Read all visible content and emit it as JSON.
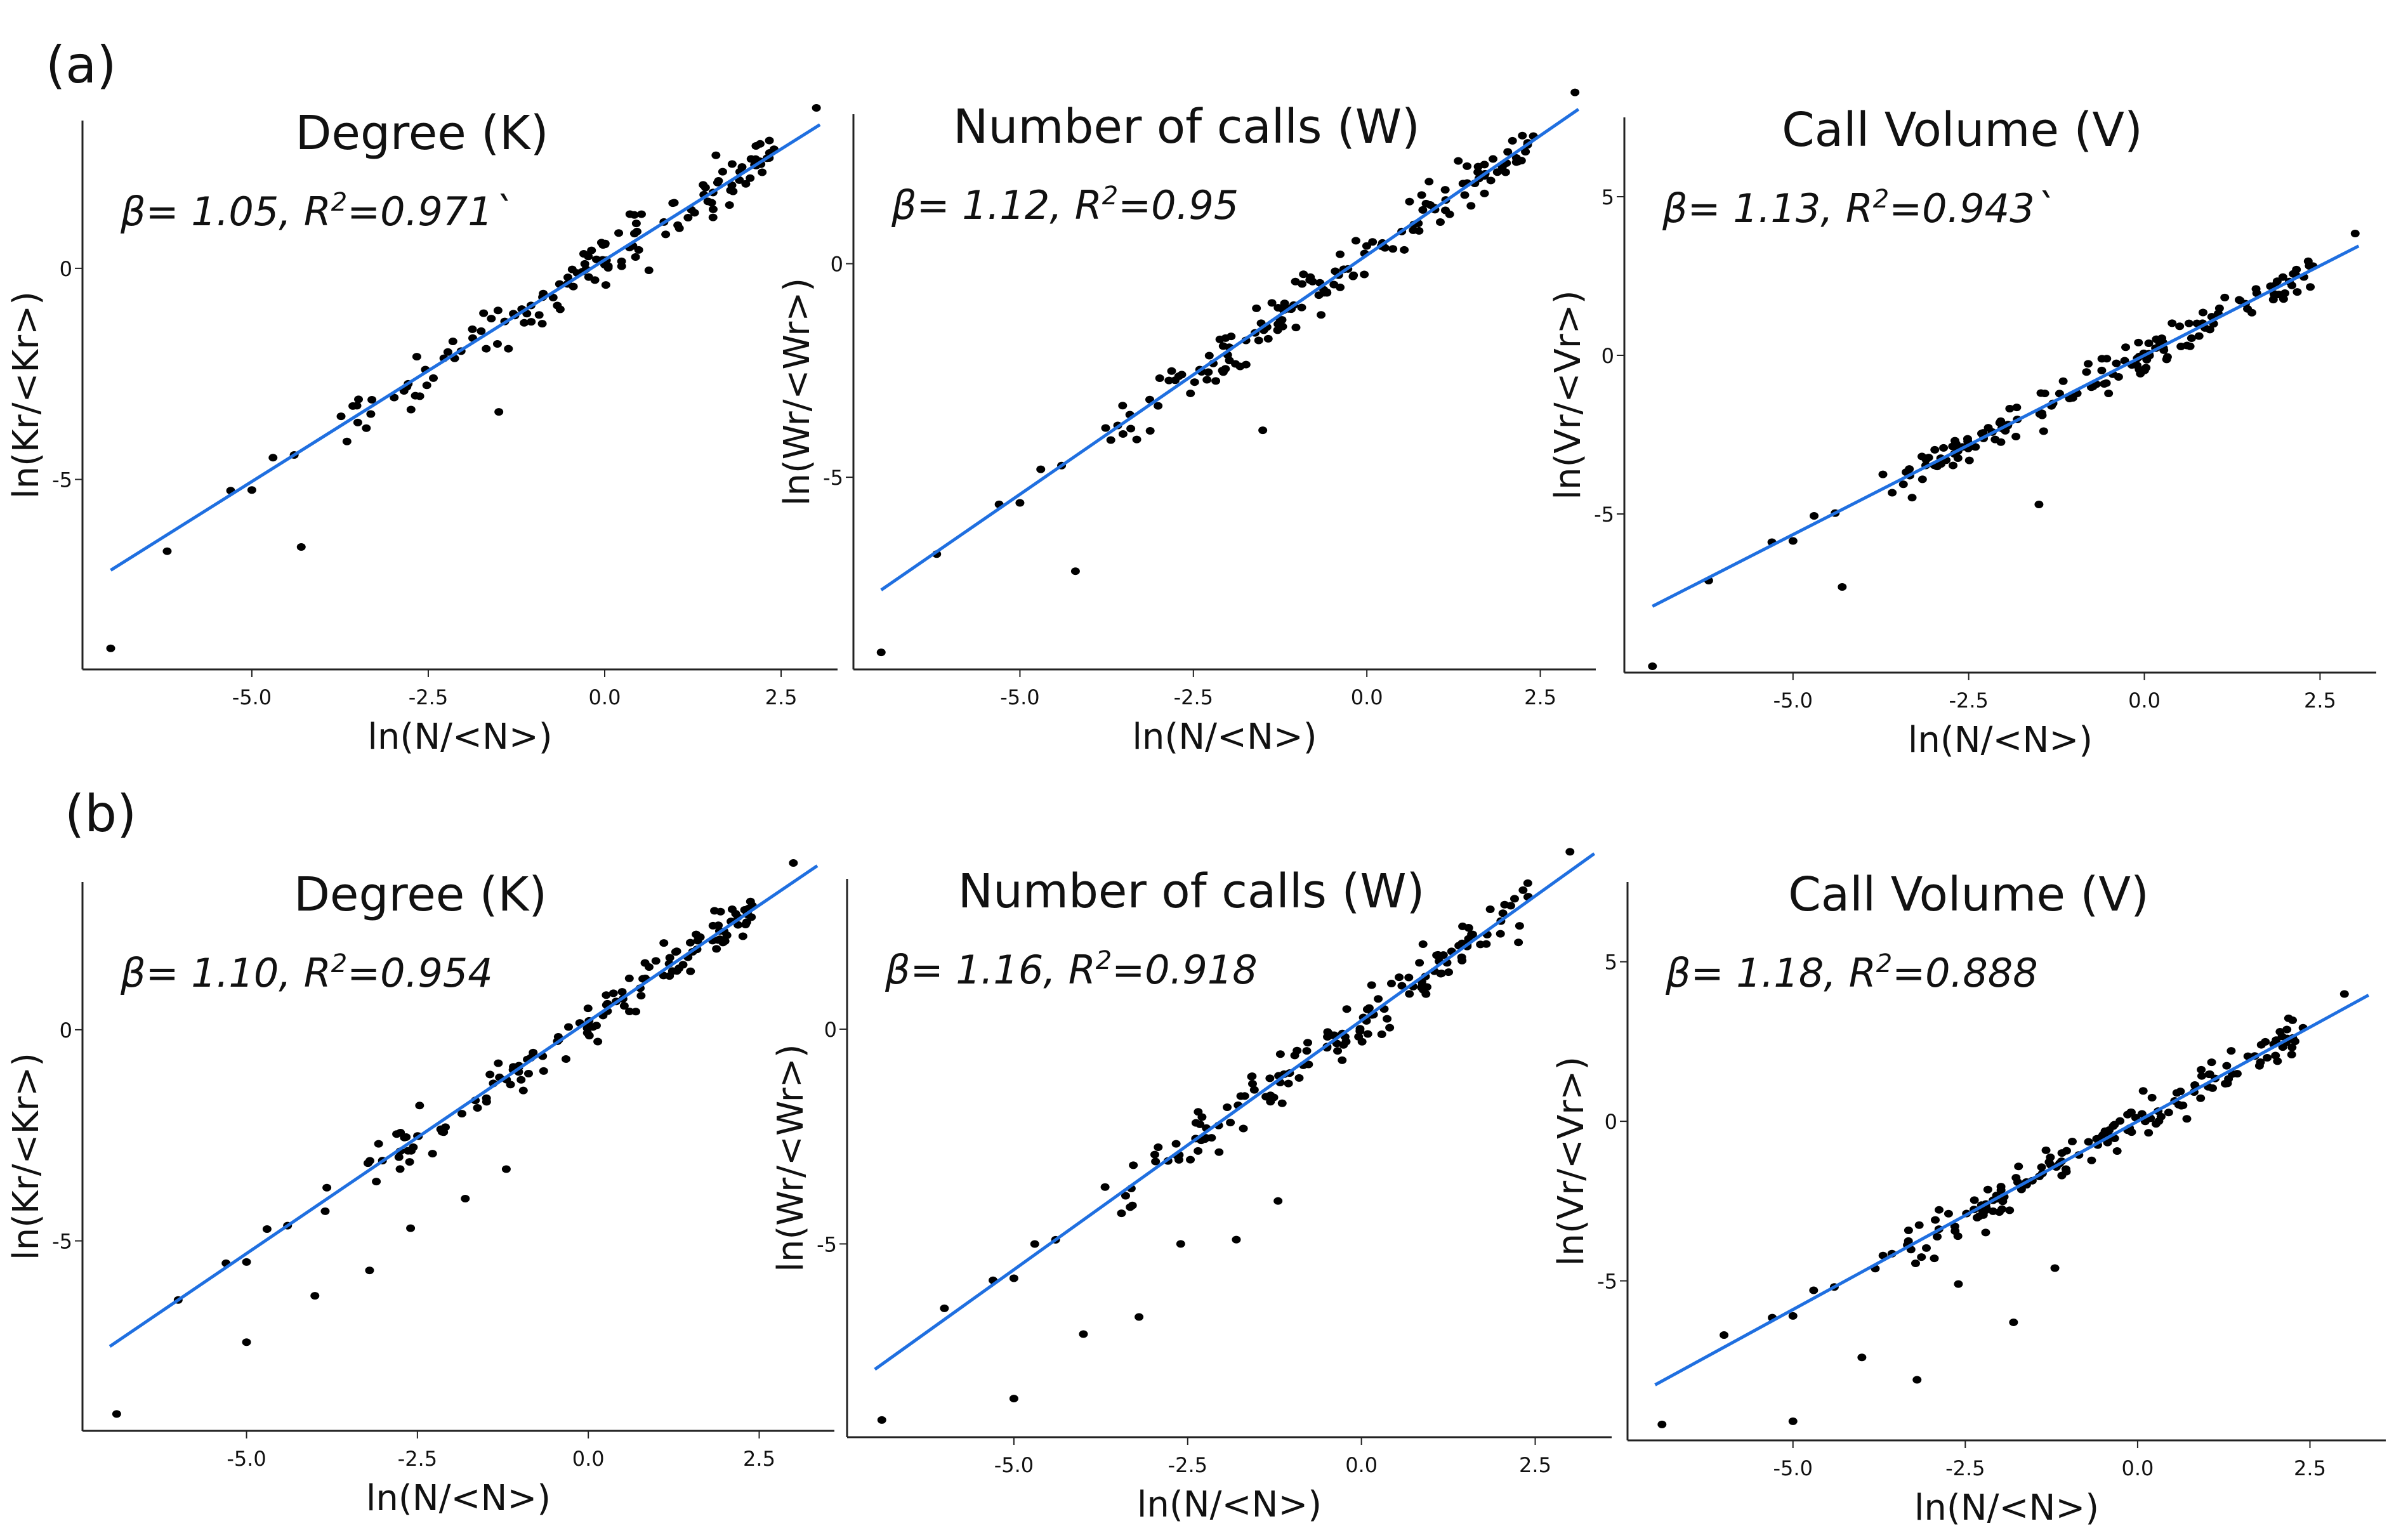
{
  "figure": {
    "row_labels": [
      "(a)",
      "(b)"
    ]
  },
  "colors": {
    "fit_line": "#1f6fe0",
    "points": "#000000",
    "axes": "#222222",
    "text": "#111111"
  },
  "chart_data": [
    {
      "type": "scatter",
      "panel": "a-1",
      "title": "Degree (K)",
      "beta": "1.05",
      "r2": "0.971`",
      "xlabel": "ln(N/<N>)",
      "ylabel": "ln(Kr/<Kr>)",
      "xlim": [
        -7.4,
        3.3
      ],
      "ylim": [
        -9.5,
        3.5
      ],
      "xticks": [
        "-5.0",
        "-2.5",
        "0.0",
        "2.5"
      ],
      "yticks": [
        "0",
        "-5"
      ],
      "fit": {
        "slope": 1.05,
        "intercept": 0.2
      },
      "outliers": [
        [
          -7.0,
          -9.0
        ],
        [
          -6.2,
          -6.7
        ],
        [
          -4.3,
          -6.6
        ],
        [
          -1.5,
          -3.4
        ]
      ]
    },
    {
      "type": "scatter",
      "panel": "a-2",
      "title": "Number of calls (W)",
      "beta": "1.12",
      "r2": "0.95",
      "xlabel": "ln(N/<N>)",
      "ylabel": "ln(Wr/<Wr>)",
      "xlim": [
        -7.4,
        3.3
      ],
      "ylim": [
        -9.5,
        3.5
      ],
      "xticks": [
        "-5.0",
        "-2.5",
        "0.0",
        "2.5"
      ],
      "yticks": [
        "0",
        "-5"
      ],
      "fit": {
        "slope": 1.12,
        "intercept": 0.2
      },
      "outliers": [
        [
          -7.0,
          -9.1
        ],
        [
          -6.2,
          -6.8
        ],
        [
          -4.2,
          -7.2
        ],
        [
          -1.5,
          -3.9
        ]
      ]
    },
    {
      "type": "scatter",
      "panel": "a-3",
      "title": "Call Volume (V)",
      "beta": "1.13",
      "r2": "0.943`",
      "xlabel": "ln(N/<N>)",
      "ylabel": "ln(Vr/<Vr>)",
      "xlim": [
        -7.4,
        3.3
      ],
      "ylim": [
        -10.0,
        7.5
      ],
      "xticks": [
        "-5.0",
        "-2.5",
        "0.0",
        "2.5"
      ],
      "yticks": [
        "5",
        "0",
        "-5"
      ],
      "fit": {
        "slope": 1.13,
        "intercept": 0.0
      },
      "outliers": [
        [
          -7.0,
          -9.8
        ],
        [
          -6.2,
          -7.1
        ],
        [
          -4.3,
          -7.3
        ],
        [
          -1.5,
          -4.7
        ]
      ]
    },
    {
      "type": "scatter",
      "panel": "b-1",
      "title": "Degree (K)",
      "beta": "1.10",
      "r2": "0.954",
      "xlabel": "ln(N/<N>)",
      "ylabel": "ln(Kr/<Kr>)",
      "xlim": [
        -7.4,
        3.6
      ],
      "ylim": [
        -9.5,
        3.5
      ],
      "xticks": [
        "-5.0",
        "-2.5",
        "0.0",
        "2.5"
      ],
      "yticks": [
        "0",
        "-5"
      ],
      "fit": {
        "slope": 1.1,
        "intercept": 0.2
      },
      "outliers": [
        [
          -6.9,
          -9.1
        ],
        [
          -6.0,
          -6.4
        ],
        [
          -5.0,
          -7.4
        ],
        [
          -4.0,
          -6.3
        ],
        [
          -3.2,
          -5.7
        ],
        [
          -2.6,
          -4.7
        ],
        [
          -1.8,
          -4.0
        ],
        [
          -1.2,
          -3.3
        ]
      ]
    },
    {
      "type": "scatter",
      "panel": "b-2",
      "title": "Number of calls (W)",
      "beta": "1.16",
      "r2": "0.918",
      "xlabel": "ln(N/<N>)",
      "ylabel": "ln(Wr/<Wr>)",
      "xlim": [
        -7.4,
        3.6
      ],
      "ylim": [
        -9.5,
        3.5
      ],
      "xticks": [
        "-5.0",
        "-2.5",
        "0.0",
        "2.5"
      ],
      "yticks": [
        "0",
        "-5"
      ],
      "fit": {
        "slope": 1.16,
        "intercept": 0.2
      },
      "outliers": [
        [
          -6.9,
          -9.1
        ],
        [
          -6.0,
          -6.5
        ],
        [
          -5.0,
          -8.6
        ],
        [
          -4.0,
          -7.1
        ],
        [
          -3.2,
          -6.7
        ],
        [
          -2.6,
          -5.0
        ],
        [
          -1.8,
          -4.9
        ],
        [
          -1.2,
          -4.0
        ]
      ]
    },
    {
      "type": "scatter",
      "panel": "b-3",
      "title": "Call Volume (V)",
      "beta": "1.18",
      "r2": "0.888",
      "xlabel": "ln(N/<N>)",
      "ylabel": "ln(Vr/<Vr>)",
      "xlim": [
        -7.4,
        3.6
      ],
      "ylim": [
        -10.0,
        7.5
      ],
      "xticks": [
        "-5.0",
        "-2.5",
        "0.0",
        "2.5"
      ],
      "yticks": [
        "5",
        "0",
        "-5"
      ],
      "fit": {
        "slope": 1.18,
        "intercept": 0.0
      },
      "outliers": [
        [
          -6.9,
          -9.5
        ],
        [
          -6.0,
          -6.7
        ],
        [
          -5.0,
          -9.4
        ],
        [
          -4.0,
          -7.4
        ],
        [
          -3.2,
          -8.1
        ],
        [
          -2.6,
          -5.1
        ],
        [
          -1.8,
          -6.3
        ],
        [
          -1.2,
          -4.6
        ]
      ]
    }
  ]
}
